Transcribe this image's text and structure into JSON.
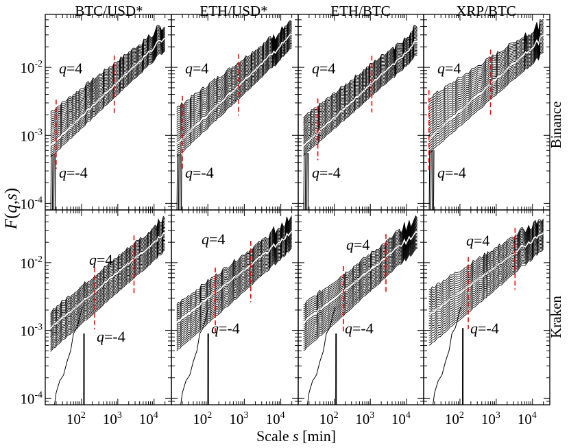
{
  "chart_data": {
    "type": "line",
    "description_axes": "log-log, 2 rows (exchanges) x 4 columns (pairs)",
    "ylabel": {
      "f": "F",
      "open": "(",
      "q": "q",
      "comma": ",",
      "s": "s",
      "close": ")"
    },
    "xlabel": {
      "prefix": "Scale ",
      "var": "s",
      "suffix": " [min]"
    },
    "columns": [
      "BTC/USD*",
      "ETH/USD*",
      "ETH/BTC",
      "XRP/BTC"
    ],
    "rows": [
      "Binance",
      "Kraken"
    ],
    "xlim": [
      10,
      30000
    ],
    "ylim": [
      8e-05,
      0.06
    ],
    "x_ticks": [
      {
        "base": "10",
        "exp": "2",
        "value": 100
      },
      {
        "base": "10",
        "exp": "3",
        "value": 1000
      },
      {
        "base": "10",
        "exp": "4",
        "value": 10000
      }
    ],
    "y_ticks": [
      {
        "base": "10",
        "exp": "-4",
        "value": 0.0001
      },
      {
        "base": "10",
        "exp": "-3",
        "value": 0.001
      },
      {
        "base": "10",
        "exp": "-2",
        "value": 0.01
      }
    ],
    "q_range": [
      -4,
      4
    ],
    "q_labels": {
      "top": {
        "q": "q",
        "text": "=4"
      },
      "bottom": {
        "q": "q",
        "text": "=-4"
      }
    },
    "series_style": {
      "family_color": "#000000",
      "q2_color": "#ffffff",
      "crossover_color": "#ff0000"
    },
    "panels": [
      {
        "row": "Binance",
        "column": "BTC/USD*",
        "y_top_start": 0.0022,
        "y_top_end": 0.042,
        "y_bottom_start": 0.00048,
        "y_bottom_end": 0.018,
        "y_q2_start": 0.0007,
        "y_q2_end": 0.028,
        "crossovers": [
          20,
          800
        ],
        "drop_to": 8e-05
      },
      {
        "row": "Binance",
        "column": "ETH/USD*",
        "y_top_start": 0.0025,
        "y_top_end": 0.045,
        "y_bottom_start": 0.00048,
        "y_bottom_end": 0.019,
        "y_q2_start": 0.00075,
        "y_q2_end": 0.03,
        "crossovers": [
          20,
          700
        ],
        "drop_to": 8e-05
      },
      {
        "row": "Binance",
        "column": "ETH/BTC",
        "y_top_start": 0.0018,
        "y_top_end": 0.038,
        "y_bottom_start": 0.0005,
        "y_bottom_end": 0.015,
        "y_q2_start": 0.0007,
        "y_q2_end": 0.024,
        "crossovers": [
          35,
          1100
        ],
        "drop_to": 8e-05
      },
      {
        "row": "Binance",
        "column": "XRP/BTC",
        "y_top_start": 0.0035,
        "y_top_end": 0.045,
        "y_bottom_start": 0.00055,
        "y_bottom_end": 0.016,
        "y_q2_start": 0.0009,
        "y_q2_end": 0.028,
        "crossovers": [
          14,
          700
        ],
        "drop_to": 8e-05
      },
      {
        "row": "Kraken",
        "column": "BTC/USD*",
        "y_top_start": 0.0019,
        "y_top_end": 0.045,
        "y_bottom_start": 0.0005,
        "y_bottom_end": 0.015,
        "y_q2_start": 0.0011,
        "y_q2_end": 0.027,
        "crossovers": [
          230,
          2800
        ],
        "drop_to": 8e-05
      },
      {
        "row": "Kraken",
        "column": "ETH/USD*",
        "y_top_start": 0.0024,
        "y_top_end": 0.045,
        "y_bottom_start": 0.0005,
        "y_bottom_end": 0.016,
        "y_q2_start": 0.0013,
        "y_q2_end": 0.028,
        "crossovers": [
          160,
          1500
        ],
        "drop_to": 8e-05
      },
      {
        "row": "Kraken",
        "column": "ETH/BTC",
        "y_top_start": 0.0024,
        "y_top_end": 0.045,
        "y_bottom_start": 0.0005,
        "y_bottom_end": 0.016,
        "y_q2_start": 0.0013,
        "y_q2_end": 0.028,
        "crossovers": [
          180,
          2700
        ],
        "drop_to": 8e-05
      },
      {
        "row": "Kraken",
        "column": "XRP/BTC",
        "y_top_start": 0.004,
        "y_top_end": 0.045,
        "y_bottom_start": 0.0006,
        "y_bottom_end": 0.016,
        "y_q2_start": 0.0017,
        "y_q2_end": 0.028,
        "crossovers": [
          170,
          3300
        ],
        "drop_to": 8e-05
      }
    ]
  }
}
